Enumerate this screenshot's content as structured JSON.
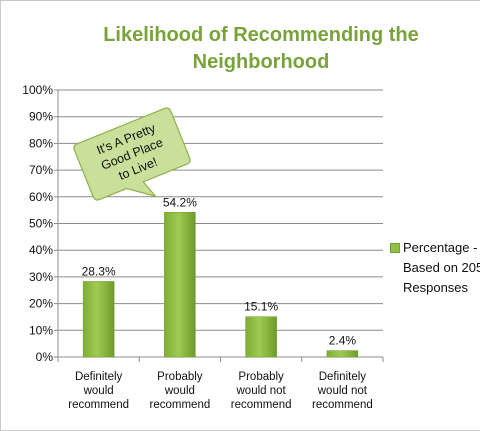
{
  "chart_data": {
    "type": "bar",
    "title_lines": [
      "Likelihood of Recommending the",
      "Neighborhood"
    ],
    "categories": [
      [
        "Definitely",
        "would",
        "recommend"
      ],
      [
        "Probably",
        "would",
        "recommend"
      ],
      [
        "Probably",
        "would not",
        "recommend"
      ],
      [
        "Definitely",
        "would not",
        "recommend"
      ]
    ],
    "series": [
      {
        "name": "Percentage - Based on 205 Responses",
        "values": [
          28.3,
          54.2,
          15.1,
          2.4
        ]
      }
    ],
    "data_labels": [
      "28.3%",
      "54.2%",
      "15.1%",
      "2.4%"
    ],
    "y_ticks": [
      "0%",
      "10%",
      "20%",
      "30%",
      "40%",
      "50%",
      "60%",
      "70%",
      "80%",
      "90%",
      "100%"
    ],
    "ylim": [
      0,
      100
    ],
    "grid": true,
    "legend_position": "right",
    "bar_color": "#92c042",
    "bar_dark": "#6f9a2c",
    "annotation": {
      "lines": [
        "It's A Pretty",
        "Good Place",
        "to Live!"
      ],
      "fill": "#c9e09a",
      "stroke": "#8fb04a"
    }
  },
  "legend": {
    "text": "Percentage - Based on 205 Responses"
  }
}
